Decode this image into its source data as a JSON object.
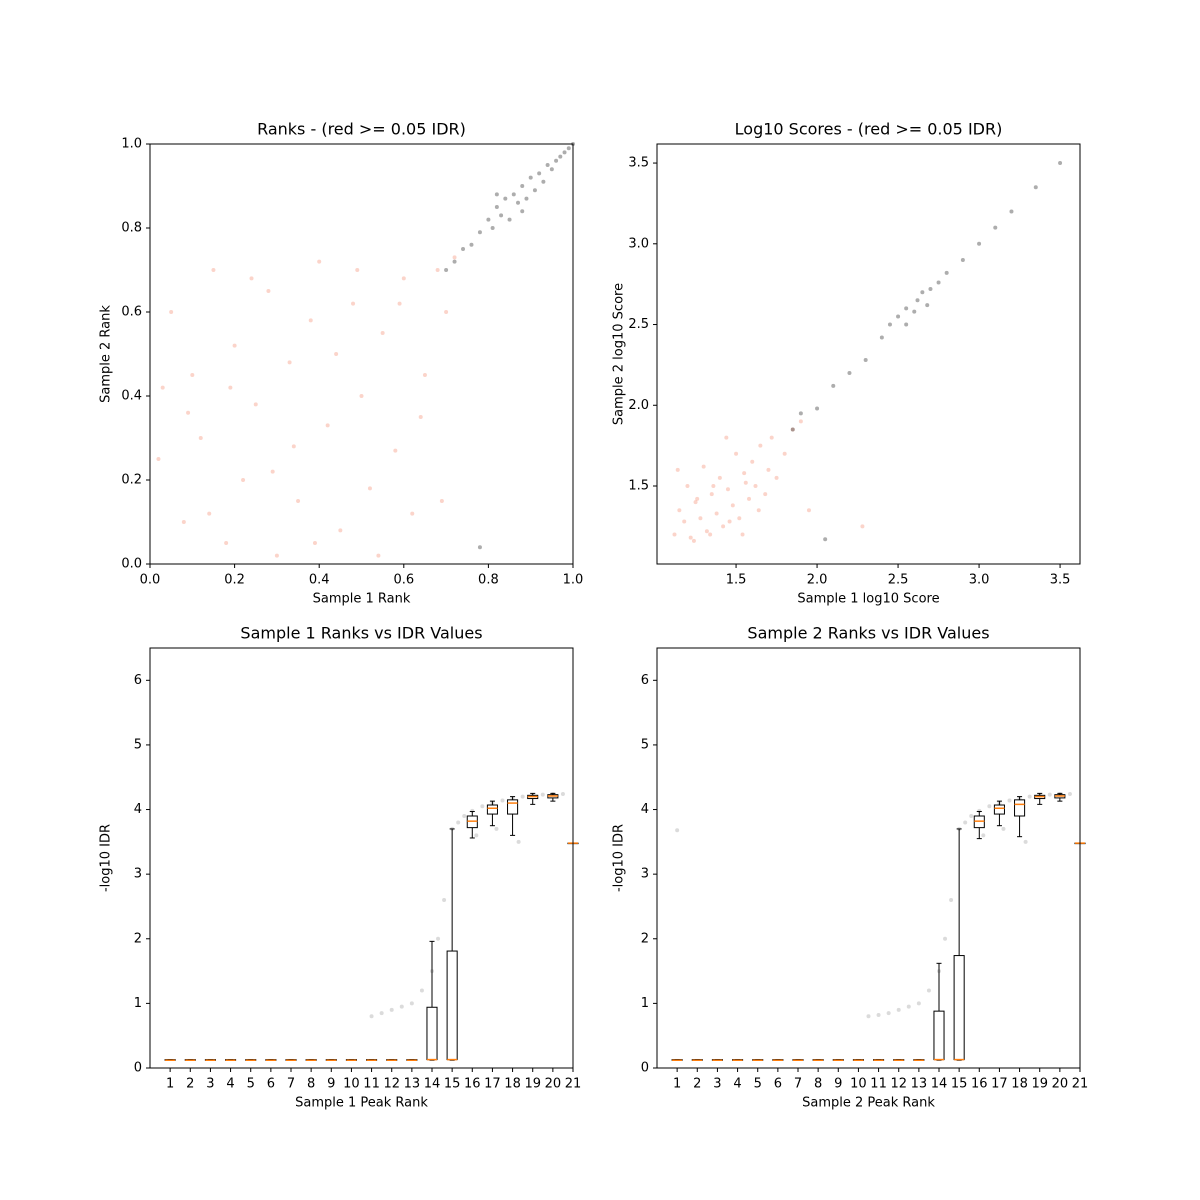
{
  "chart_data": [
    {
      "type": "scatter",
      "title": "Ranks - (red >= 0.05 IDR)",
      "xlabel": "Sample 1 Rank",
      "ylabel": "Sample 2 Rank",
      "xlim": [
        0,
        1
      ],
      "ylim": [
        0,
        1
      ],
      "xticks": [
        {
          "value": 0,
          "label": "0.0"
        },
        0.2,
        0.4,
        0.6,
        0.8,
        {
          "value": 1,
          "label": "1.0"
        }
      ],
      "yticks": [
        {
          "value": 0,
          "label": "0.0"
        },
        0.2,
        0.4,
        0.6,
        0.8,
        {
          "value": 1,
          "label": "1.0"
        }
      ],
      "series": [
        {
          "color": "#f4937a",
          "x": [
            0.02,
            0.05,
            0.08,
            0.1,
            0.12,
            0.15,
            0.18,
            0.2,
            0.22,
            0.25,
            0.28,
            0.3,
            0.33,
            0.35,
            0.38,
            0.4,
            0.42,
            0.45,
            0.48,
            0.5,
            0.52,
            0.55,
            0.58,
            0.6,
            0.62,
            0.65,
            0.68,
            0.7,
            0.72,
            0.03,
            0.14,
            0.24,
            0.34,
            0.44,
            0.54,
            0.64,
            0.09,
            0.29,
            0.49,
            0.69,
            0.19,
            0.39,
            0.59
          ],
          "y": [
            0.25,
            0.6,
            0.1,
            0.45,
            0.3,
            0.7,
            0.05,
            0.52,
            0.2,
            0.38,
            0.65,
            0.02,
            0.48,
            0.15,
            0.58,
            0.72,
            0.33,
            0.08,
            0.62,
            0.4,
            0.18,
            0.55,
            0.27,
            0.68,
            0.12,
            0.45,
            0.7,
            0.6,
            0.73,
            0.42,
            0.12,
            0.68,
            0.28,
            0.5,
            0.02,
            0.35,
            0.36,
            0.22,
            0.7,
            0.15,
            0.42,
            0.05,
            0.62
          ]
        },
        {
          "color": "#333333",
          "x": [
            0.7,
            0.72,
            0.74,
            0.76,
            0.78,
            0.8,
            0.81,
            0.82,
            0.83,
            0.84,
            0.85,
            0.86,
            0.87,
            0.88,
            0.89,
            0.9,
            0.91,
            0.92,
            0.93,
            0.94,
            0.95,
            0.96,
            0.97,
            0.98,
            0.99,
            1.0,
            0.82,
            0.88,
            0.78
          ],
          "y": [
            0.7,
            0.72,
            0.75,
            0.76,
            0.79,
            0.82,
            0.8,
            0.85,
            0.83,
            0.87,
            0.82,
            0.88,
            0.86,
            0.9,
            0.87,
            0.92,
            0.89,
            0.93,
            0.91,
            0.95,
            0.94,
            0.96,
            0.97,
            0.98,
            0.99,
            1.0,
            0.88,
            0.84,
            0.04
          ]
        }
      ]
    },
    {
      "type": "scatter",
      "title": "Log10 Scores - (red >= 0.05 IDR)",
      "xlabel": "Sample 1 log10 Score",
      "ylabel": "Sample 2 log10 Score",
      "xlim": [
        1.012,
        3.623
      ],
      "ylim": [
        1.017,
        3.618
      ],
      "xticks": [
        1.5,
        {
          "value": 2,
          "label": "2.0"
        },
        2.5,
        {
          "value": 3,
          "label": "3.0"
        },
        3.5
      ],
      "yticks": [
        1.5,
        {
          "value": 2,
          "label": "2.0"
        },
        2.5,
        {
          "value": 3,
          "label": "3.0"
        },
        3.5
      ],
      "series": [
        {
          "color": "#f4937a",
          "x": [
            1.12,
            1.15,
            1.18,
            1.2,
            1.22,
            1.25,
            1.28,
            1.3,
            1.32,
            1.35,
            1.38,
            1.4,
            1.42,
            1.45,
            1.48,
            1.5,
            1.52,
            1.55,
            1.58,
            1.6,
            1.62,
            1.65,
            1.68,
            1.7,
            1.72,
            1.75,
            1.8,
            1.85,
            1.9,
            1.14,
            1.24,
            1.34,
            1.44,
            1.54,
            1.64,
            1.26,
            1.36,
            1.46,
            1.56,
            2.28,
            1.95
          ],
          "y": [
            1.2,
            1.35,
            1.28,
            1.5,
            1.18,
            1.4,
            1.3,
            1.62,
            1.22,
            1.45,
            1.33,
            1.55,
            1.25,
            1.48,
            1.38,
            1.7,
            1.3,
            1.58,
            1.42,
            1.65,
            1.5,
            1.75,
            1.45,
            1.6,
            1.8,
            1.55,
            1.7,
            1.85,
            1.9,
            1.6,
            1.16,
            1.2,
            1.8,
            1.2,
            1.35,
            1.42,
            1.5,
            1.28,
            1.52,
            1.25,
            1.35
          ]
        },
        {
          "color": "#333333",
          "x": [
            1.85,
            1.9,
            2.0,
            2.1,
            2.2,
            2.3,
            2.4,
            2.45,
            2.5,
            2.55,
            2.6,
            2.62,
            2.65,
            2.7,
            2.75,
            2.8,
            2.9,
            3.0,
            3.1,
            3.2,
            3.35,
            3.5,
            2.05,
            2.55,
            2.68
          ],
          "y": [
            1.85,
            1.95,
            1.98,
            2.12,
            2.2,
            2.28,
            2.42,
            2.5,
            2.55,
            2.6,
            2.58,
            2.65,
            2.7,
            2.72,
            2.76,
            2.82,
            2.9,
            3.0,
            3.1,
            3.2,
            3.35,
            3.5,
            1.17,
            2.5,
            2.62
          ]
        }
      ]
    },
    {
      "type": "box",
      "title": "Sample 1 Ranks vs IDR Values",
      "xlabel": "Sample 1 Peak Rank",
      "ylabel": "-log10 IDR",
      "xlim": [
        0,
        21
      ],
      "ylim": [
        0,
        6.5
      ],
      "xticks": [
        1,
        2,
        3,
        4,
        5,
        6,
        7,
        8,
        9,
        10,
        11,
        12,
        13,
        14,
        15,
        16,
        17,
        18,
        19,
        20,
        21
      ],
      "yticks": [
        0,
        1,
        2,
        3,
        4,
        5,
        6
      ],
      "box_color": "#000000",
      "median_color": "#ff7f0e",
      "point_color": "#999999",
      "boxes": [
        {
          "x": 1,
          "low": 0.12,
          "q1": 0.12,
          "median": 0.12,
          "q3": 0.13,
          "high": 0.13
        },
        {
          "x": 2,
          "low": 0.12,
          "q1": 0.12,
          "median": 0.12,
          "q3": 0.13,
          "high": 0.13
        },
        {
          "x": 3,
          "low": 0.12,
          "q1": 0.12,
          "median": 0.12,
          "q3": 0.13,
          "high": 0.13
        },
        {
          "x": 4,
          "low": 0.12,
          "q1": 0.12,
          "median": 0.12,
          "q3": 0.13,
          "high": 0.13
        },
        {
          "x": 5,
          "low": 0.12,
          "q1": 0.12,
          "median": 0.12,
          "q3": 0.13,
          "high": 0.13
        },
        {
          "x": 6,
          "low": 0.12,
          "q1": 0.12,
          "median": 0.12,
          "q3": 0.13,
          "high": 0.13
        },
        {
          "x": 7,
          "low": 0.12,
          "q1": 0.12,
          "median": 0.12,
          "q3": 0.13,
          "high": 0.13
        },
        {
          "x": 8,
          "low": 0.12,
          "q1": 0.12,
          "median": 0.12,
          "q3": 0.13,
          "high": 0.13
        },
        {
          "x": 9,
          "low": 0.12,
          "q1": 0.12,
          "median": 0.12,
          "q3": 0.13,
          "high": 0.13
        },
        {
          "x": 10,
          "low": 0.12,
          "q1": 0.12,
          "median": 0.12,
          "q3": 0.13,
          "high": 0.13
        },
        {
          "x": 11,
          "low": 0.12,
          "q1": 0.12,
          "median": 0.12,
          "q3": 0.13,
          "high": 0.13
        },
        {
          "x": 12,
          "low": 0.12,
          "q1": 0.12,
          "median": 0.12,
          "q3": 0.13,
          "high": 0.13
        },
        {
          "x": 13,
          "low": 0.12,
          "q1": 0.12,
          "median": 0.12,
          "q3": 0.13,
          "high": 0.13
        },
        {
          "x": 14,
          "low": 0.12,
          "q1": 0.13,
          "median": 0.13,
          "q3": 0.94,
          "high": 1.96
        },
        {
          "x": 15,
          "low": 0.12,
          "q1": 0.13,
          "median": 0.13,
          "q3": 1.81,
          "high": 3.7
        },
        {
          "x": 16,
          "low": 3.56,
          "q1": 3.72,
          "median": 3.82,
          "q3": 3.9,
          "high": 3.97
        },
        {
          "x": 17,
          "low": 3.75,
          "q1": 3.93,
          "median": 4.02,
          "q3": 4.07,
          "high": 4.13
        },
        {
          "x": 18,
          "low": 3.6,
          "q1": 3.93,
          "median": 4.1,
          "q3": 4.15,
          "high": 4.2
        },
        {
          "x": 19,
          "low": 4.08,
          "q1": 4.17,
          "median": 4.2,
          "q3": 4.22,
          "high": 4.25
        },
        {
          "x": 20,
          "low": 4.13,
          "q1": 4.18,
          "median": 4.21,
          "q3": 4.23,
          "high": 4.25
        },
        {
          "x": 21,
          "low": 3.48,
          "q1": 3.48,
          "median": 3.48,
          "q3": 3.48,
          "high": 3.48
        }
      ],
      "points": {
        "x": [
          11,
          11.5,
          12,
          12.5,
          13,
          13.5,
          14,
          14.3,
          14.6,
          15,
          15.3,
          15.6,
          16,
          16.5,
          17,
          17.5,
          18,
          18.5,
          19,
          19.5,
          20,
          20.5,
          16.2,
          17.2,
          18.3
        ],
        "y": [
          0.8,
          0.85,
          0.9,
          0.95,
          1.0,
          1.2,
          1.5,
          2.0,
          2.6,
          3.7,
          3.8,
          3.9,
          3.98,
          4.05,
          4.1,
          4.14,
          4.17,
          4.2,
          4.22,
          4.23,
          4.24,
          4.24,
          3.6,
          3.7,
          3.5
        ]
      }
    },
    {
      "type": "box",
      "title": "Sample 2 Ranks vs IDR Values",
      "xlabel": "Sample 2 Peak Rank",
      "ylabel": "-log10 IDR",
      "xlim": [
        0,
        21
      ],
      "ylim": [
        0,
        6.5
      ],
      "xticks": [
        1,
        2,
        3,
        4,
        5,
        6,
        7,
        8,
        9,
        10,
        11,
        12,
        13,
        14,
        15,
        16,
        17,
        18,
        19,
        20,
        21
      ],
      "yticks": [
        0,
        1,
        2,
        3,
        4,
        5,
        6
      ],
      "box_color": "#000000",
      "median_color": "#ff7f0e",
      "point_color": "#999999",
      "boxes": [
        {
          "x": 1,
          "low": 0.12,
          "q1": 0.12,
          "median": 0.12,
          "q3": 0.13,
          "high": 0.13
        },
        {
          "x": 2,
          "low": 0.12,
          "q1": 0.12,
          "median": 0.12,
          "q3": 0.13,
          "high": 0.13
        },
        {
          "x": 3,
          "low": 0.12,
          "q1": 0.12,
          "median": 0.12,
          "q3": 0.13,
          "high": 0.13
        },
        {
          "x": 4,
          "low": 0.12,
          "q1": 0.12,
          "median": 0.12,
          "q3": 0.13,
          "high": 0.13
        },
        {
          "x": 5,
          "low": 0.12,
          "q1": 0.12,
          "median": 0.12,
          "q3": 0.13,
          "high": 0.13
        },
        {
          "x": 6,
          "low": 0.12,
          "q1": 0.12,
          "median": 0.12,
          "q3": 0.13,
          "high": 0.13
        },
        {
          "x": 7,
          "low": 0.12,
          "q1": 0.12,
          "median": 0.12,
          "q3": 0.13,
          "high": 0.13
        },
        {
          "x": 8,
          "low": 0.12,
          "q1": 0.12,
          "median": 0.12,
          "q3": 0.13,
          "high": 0.13
        },
        {
          "x": 9,
          "low": 0.12,
          "q1": 0.12,
          "median": 0.12,
          "q3": 0.13,
          "high": 0.13
        },
        {
          "x": 10,
          "low": 0.12,
          "q1": 0.12,
          "median": 0.12,
          "q3": 0.13,
          "high": 0.13
        },
        {
          "x": 11,
          "low": 0.12,
          "q1": 0.12,
          "median": 0.12,
          "q3": 0.13,
          "high": 0.13
        },
        {
          "x": 12,
          "low": 0.12,
          "q1": 0.12,
          "median": 0.12,
          "q3": 0.13,
          "high": 0.13
        },
        {
          "x": 13,
          "low": 0.12,
          "q1": 0.12,
          "median": 0.12,
          "q3": 0.13,
          "high": 0.13
        },
        {
          "x": 14,
          "low": 0.12,
          "q1": 0.13,
          "median": 0.13,
          "q3": 0.88,
          "high": 1.62
        },
        {
          "x": 15,
          "low": 0.12,
          "q1": 0.13,
          "median": 0.13,
          "q3": 1.74,
          "high": 3.7
        },
        {
          "x": 16,
          "low": 3.55,
          "q1": 3.72,
          "median": 3.82,
          "q3": 3.9,
          "high": 3.97
        },
        {
          "x": 17,
          "low": 3.75,
          "q1": 3.93,
          "median": 4.02,
          "q3": 4.07,
          "high": 4.13
        },
        {
          "x": 18,
          "low": 3.58,
          "q1": 3.9,
          "median": 4.08,
          "q3": 4.15,
          "high": 4.2
        },
        {
          "x": 19,
          "low": 4.08,
          "q1": 4.17,
          "median": 4.2,
          "q3": 4.22,
          "high": 4.25
        },
        {
          "x": 20,
          "low": 4.13,
          "q1": 4.18,
          "median": 4.21,
          "q3": 4.23,
          "high": 4.25
        },
        {
          "x": 21,
          "low": 3.48,
          "q1": 3.48,
          "median": 3.48,
          "q3": 3.48,
          "high": 3.48
        }
      ],
      "points": {
        "x": [
          1,
          10.5,
          11,
          11.5,
          12,
          12.5,
          13,
          13.5,
          14,
          14.3,
          14.6,
          15,
          15.3,
          15.6,
          16,
          16.5,
          17,
          17.5,
          18,
          18.5,
          19,
          19.5,
          20,
          20.5,
          16.2,
          17.2,
          18.3
        ],
        "y": [
          3.68,
          0.8,
          0.82,
          0.85,
          0.9,
          0.95,
          1.0,
          1.2,
          1.5,
          2.0,
          2.6,
          3.7,
          3.8,
          3.9,
          3.98,
          4.05,
          4.1,
          4.14,
          4.17,
          4.2,
          4.22,
          4.23,
          4.24,
          4.24,
          3.6,
          3.7,
          3.5
        ]
      }
    }
  ]
}
